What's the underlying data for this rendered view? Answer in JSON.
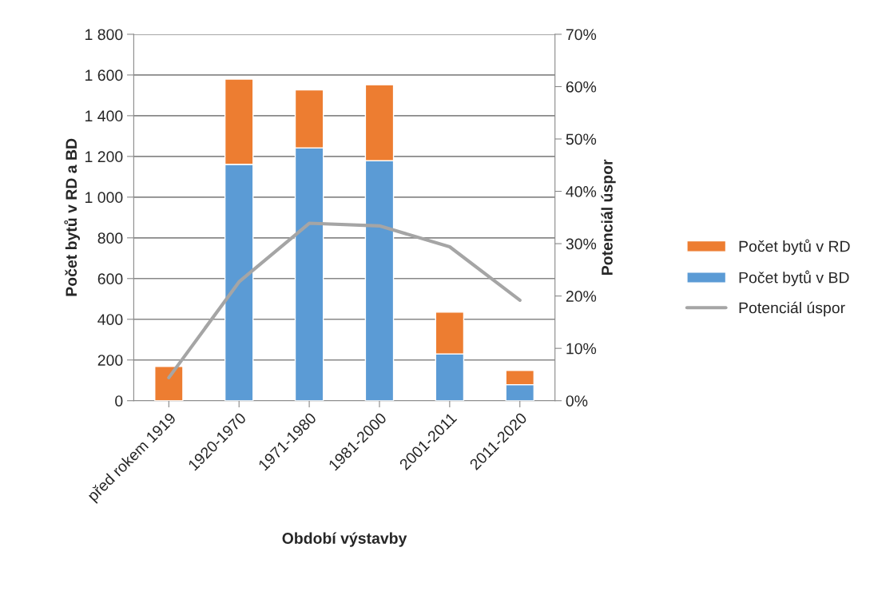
{
  "chart_data": {
    "type": "bar",
    "stacked": true,
    "xlabel": "Období výstavby",
    "ylabel": "Počet bytů v RD a BD",
    "y2label": "Potenciál úspor",
    "categories": [
      "před rokem 1919",
      "1920-1970",
      "1971-1980",
      "1981-2000",
      "2001-2011",
      "2011-2020"
    ],
    "series": [
      {
        "name": "Počet bytů v BD",
        "color": "#5b9bd5",
        "values": [
          0,
          1161,
          1242,
          1179,
          230,
          79
        ]
      },
      {
        "name": "Počet bytů v RD",
        "color": "#ed7d31",
        "values": [
          168,
          419,
          285,
          373,
          205,
          70
        ]
      },
      {
        "name": "Potenciál úspor",
        "type": "line",
        "axis": "y2",
        "color": "#a5a5a5",
        "marker": "none",
        "line_style": "solid",
        "values": [
          4.4,
          22.7,
          33.9,
          33.4,
          29.4,
          19.2
        ]
      }
    ],
    "ylim": [
      0,
      1800
    ],
    "yticks": [
      0,
      200,
      400,
      600,
      800,
      {
        "value": 1000,
        "label": "1 000"
      },
      {
        "value": 1200,
        "label": "1 200"
      },
      {
        "value": 1400,
        "label": "1 400"
      },
      {
        "value": 1600,
        "label": "1 600"
      },
      {
        "value": 1800,
        "label": "1 800"
      }
    ],
    "y2lim": [
      0,
      70
    ],
    "y2ticks": [
      {
        "value": 0,
        "label": "0%"
      },
      {
        "value": 10,
        "label": "10%"
      },
      {
        "value": 20,
        "label": "20%"
      },
      {
        "value": 30,
        "label": "30%"
      },
      {
        "value": 40,
        "label": "40%"
      },
      {
        "value": 50,
        "label": "50%"
      },
      {
        "value": 60,
        "label": "60%"
      },
      {
        "value": 70,
        "label": "70%"
      }
    ],
    "grid": "y",
    "legend": "right"
  }
}
